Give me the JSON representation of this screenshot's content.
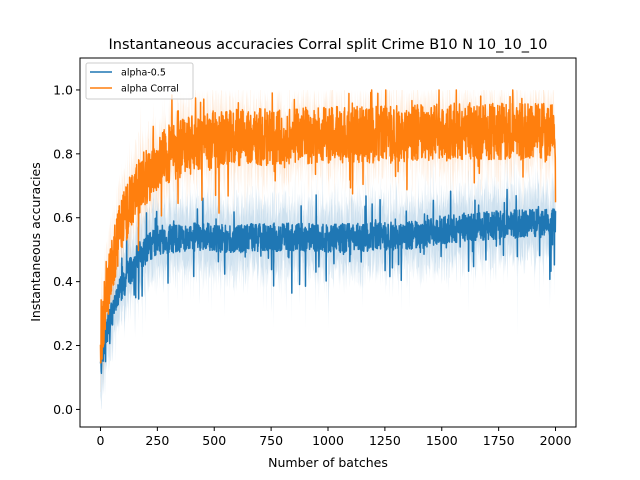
{
  "chart_data": {
    "type": "line",
    "title": "Instantaneous accuracies Corral split Crime B10 N 10_10_10",
    "xlabel": "Number of batches",
    "ylabel": "Instantaneous accuracies",
    "xlim": [
      -90,
      2090
    ],
    "ylim": [
      -0.055,
      1.1
    ],
    "xticks": [
      0,
      250,
      500,
      750,
      1000,
      1250,
      1500,
      1750,
      2000
    ],
    "yticks": [
      0.0,
      0.2,
      0.4,
      0.6,
      0.8,
      1.0
    ],
    "xtick_labels": [
      "0",
      "250",
      "500",
      "750",
      "1000",
      "1250",
      "1500",
      "1750",
      "2000"
    ],
    "ytick_labels": [
      "0.0",
      "0.2",
      "0.4",
      "0.6",
      "0.8",
      "1.0"
    ],
    "grid": false,
    "legend": {
      "placement": "top-left"
    },
    "series": [
      {
        "name": "alpha-0.5",
        "color": "#1f77b4",
        "band_opacity": 0.22,
        "profile": [
          [
            0,
            0.13
          ],
          [
            20,
            0.22
          ],
          [
            50,
            0.3
          ],
          [
            80,
            0.36
          ],
          [
            120,
            0.42
          ],
          [
            160,
            0.47
          ],
          [
            200,
            0.5
          ],
          [
            250,
            0.53
          ],
          [
            400,
            0.54
          ],
          [
            600,
            0.535
          ],
          [
            800,
            0.54
          ],
          [
            1000,
            0.535
          ],
          [
            1200,
            0.54
          ],
          [
            1400,
            0.545
          ],
          [
            1500,
            0.56
          ],
          [
            1600,
            0.57
          ],
          [
            1700,
            0.575
          ],
          [
            1800,
            0.58
          ],
          [
            2000,
            0.585
          ]
        ],
        "noise_amplitude": 0.045,
        "band_half_width": 0.09
      },
      {
        "name": "alpha Corral",
        "color": "#ff7f0e",
        "band_opacity": 0.2,
        "profile": [
          [
            0,
            0.2
          ],
          [
            20,
            0.33
          ],
          [
            50,
            0.45
          ],
          [
            80,
            0.55
          ],
          [
            120,
            0.63
          ],
          [
            160,
            0.69
          ],
          [
            200,
            0.73
          ],
          [
            250,
            0.77
          ],
          [
            300,
            0.8
          ],
          [
            400,
            0.83
          ],
          [
            600,
            0.85
          ],
          [
            800,
            0.855
          ],
          [
            1000,
            0.86
          ],
          [
            1200,
            0.86
          ],
          [
            1400,
            0.865
          ],
          [
            1600,
            0.87
          ],
          [
            1800,
            0.87
          ],
          [
            2000,
            0.87
          ]
        ],
        "noise_amplitude": 0.09,
        "band_half_width": 0.08
      }
    ]
  }
}
